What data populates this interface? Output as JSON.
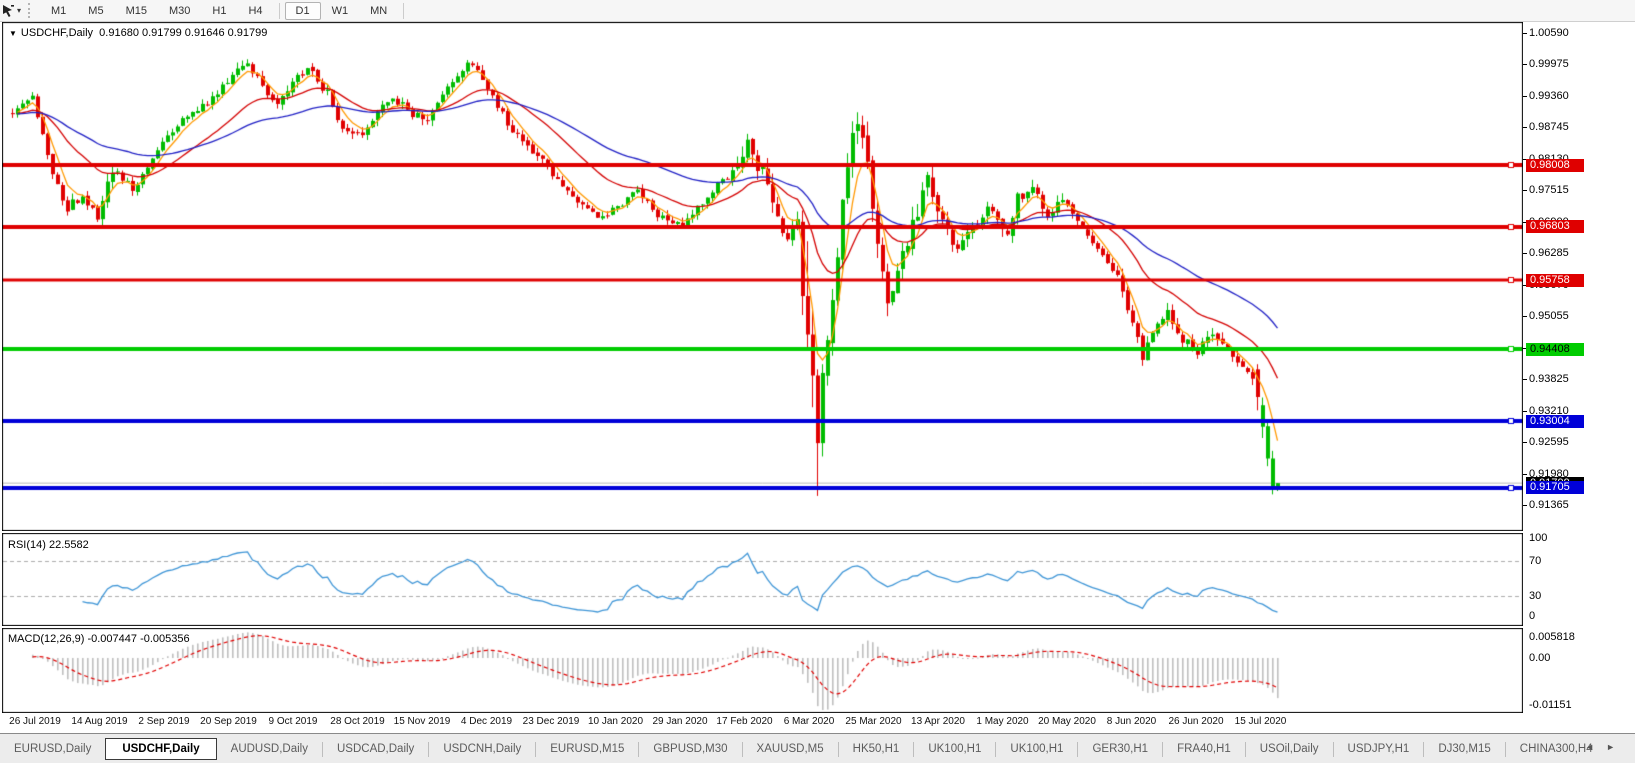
{
  "toolbar": {
    "timeframes": [
      "M1",
      "M5",
      "M15",
      "M30",
      "H1",
      "H4",
      "D1",
      "W1",
      "MN"
    ],
    "active_timeframe": "D1",
    "cursor_tool_icon": "cursor-arrow-icon",
    "dropdown_caret": "▾"
  },
  "chart_header": {
    "collapse_icon": "▼",
    "symbol": "USDCHF,Daily",
    "ohlc": "0.91680 0.91799 0.91646 0.91799"
  },
  "price_axis": {
    "ticks": [
      "1.00590",
      "0.99975",
      "0.99360",
      "0.98745",
      "0.98130",
      "0.97515",
      "0.96900",
      "0.96285",
      "0.95670",
      "0.95055",
      "0.94440",
      "0.93825",
      "0.93210",
      "0.92595",
      "0.91980",
      "0.91365"
    ],
    "line_labels": [
      {
        "text": "0.98008",
        "price": 0.98008,
        "bg": "#DF0000",
        "fg": "#FFFFFF"
      },
      {
        "text": "0.96803",
        "price": 0.96803,
        "bg": "#DF0000",
        "fg": "#FFFFFF"
      },
      {
        "text": "0.95758",
        "price": 0.95758,
        "bg": "#DF0000",
        "fg": "#FFFFFF"
      },
      {
        "text": "0.94408",
        "price": 0.94408,
        "bg": "#00CC00",
        "fg": "#000000"
      },
      {
        "text": "0.93004",
        "price": 0.93004,
        "bg": "#0000D8",
        "fg": "#FFFFFF"
      },
      {
        "text": "0.91799",
        "price": 0.91799,
        "bg": "#000000",
        "fg": "#FFFFFF"
      },
      {
        "text": "0.91705",
        "price": 0.91705,
        "bg": "#0000D8",
        "fg": "#FFFFFF"
      }
    ]
  },
  "chart_data": {
    "type": "candlestick",
    "symbol": "USDCHF",
    "timeframe": "Daily",
    "price_range": {
      "min": 0.91365,
      "max": 1.0059,
      "tick_step": 0.00615
    },
    "bar_count": 254,
    "last_bar": {
      "open": 0.9168,
      "high": 0.91799,
      "low": 0.91646,
      "close": 0.91799
    },
    "up_color": "#00BB00",
    "down_color": "#E00000",
    "close_anchors": [
      [
        0,
        0.9905
      ],
      [
        4,
        0.9935
      ],
      [
        8,
        0.979
      ],
      [
        11,
        0.9715
      ],
      [
        14,
        0.9745
      ],
      [
        17,
        0.97
      ],
      [
        20,
        0.979
      ],
      [
        24,
        0.9755
      ],
      [
        28,
        0.981
      ],
      [
        31,
        0.986
      ],
      [
        35,
        0.9895
      ],
      [
        40,
        0.993
      ],
      [
        44,
        0.998
      ],
      [
        47,
        1.0
      ],
      [
        50,
        0.995
      ],
      [
        53,
        0.9915
      ],
      [
        56,
        0.996
      ],
      [
        59,
        0.999
      ],
      [
        63,
        0.994
      ],
      [
        66,
        0.9875
      ],
      [
        70,
        0.9865
      ],
      [
        73,
        0.9905
      ],
      [
        76,
        0.9935
      ],
      [
        80,
        0.99
      ],
      [
        83,
        0.989
      ],
      [
        86,
        0.9935
      ],
      [
        89,
        0.998
      ],
      [
        92,
        1.0
      ],
      [
        96,
        0.993
      ],
      [
        100,
        0.987
      ],
      [
        104,
        0.983
      ],
      [
        109,
        0.9775
      ],
      [
        113,
        0.9725
      ],
      [
        117,
        0.9695
      ],
      [
        121,
        0.9715
      ],
      [
        125,
        0.9755
      ],
      [
        129,
        0.97
      ],
      [
        134,
        0.968
      ],
      [
        137,
        0.9715
      ],
      [
        140,
        0.975
      ],
      [
        144,
        0.979
      ],
      [
        147,
        0.984
      ],
      [
        150,
        0.9785
      ],
      [
        153,
        0.9695
      ],
      [
        155,
        0.966
      ],
      [
        157,
        0.969
      ],
      [
        163,
        0.948
      ],
      [
        165,
        0.963
      ],
      [
        167,
        0.98
      ],
      [
        169,
        0.9895
      ],
      [
        171,
        0.979
      ],
      [
        173,
        0.964
      ],
      [
        175,
        0.952
      ],
      [
        177,
        0.959
      ],
      [
        180,
        0.969
      ],
      [
        183,
        0.978
      ],
      [
        186,
        0.969
      ],
      [
        189,
        0.963
      ],
      [
        192,
        0.9675
      ],
      [
        195,
        0.9715
      ],
      [
        199,
        0.9675
      ],
      [
        201,
        0.9735
      ],
      [
        204,
        0.9755
      ],
      [
        207,
        0.9695
      ],
      [
        209,
        0.973
      ],
      [
        211,
        0.9715
      ],
      [
        214,
        0.9675
      ],
      [
        217,
        0.9635
      ],
      [
        220,
        0.96
      ],
      [
        222,
        0.956
      ],
      [
        224,
        0.9485
      ],
      [
        226,
        0.943
      ],
      [
        228,
        0.9475
      ],
      [
        231,
        0.951
      ],
      [
        234,
        0.946
      ],
      [
        237,
        0.9435
      ],
      [
        240,
        0.9475
      ],
      [
        243,
        0.9445
      ],
      [
        246,
        0.9415
      ],
      [
        248,
        0.939
      ],
      [
        253,
        0.918
      ]
    ],
    "special_bars": {
      "158": [
        0.969,
        0.9712,
        0.9508,
        0.9545
      ],
      "159": [
        0.9545,
        0.9652,
        0.9438,
        0.947
      ],
      "160": [
        0.947,
        0.9522,
        0.9328,
        0.939
      ],
      "161": [
        0.939,
        0.9402,
        0.9155,
        0.9258
      ],
      "162": [
        0.9258,
        0.9412,
        0.9232,
        0.9395
      ],
      "249": [
        0.9402,
        0.9412,
        0.9322,
        0.9348
      ],
      "250": [
        0.929,
        0.9347,
        0.9268,
        0.9332
      ],
      "251": [
        0.9228,
        0.9302,
        0.9213,
        0.9291
      ],
      "252": [
        0.9168,
        0.9243,
        0.9158,
        0.9228
      ],
      "253": [
        0.9168,
        0.91799,
        0.91646,
        0.91799
      ]
    },
    "volatility_zones": [
      [
        0,
        0.0016
      ],
      [
        8,
        0.0024
      ],
      [
        21,
        0.0015
      ],
      [
        44,
        0.0017
      ],
      [
        96,
        0.0015
      ],
      [
        144,
        0.003
      ],
      [
        163,
        0.0042
      ],
      [
        186,
        0.0022
      ],
      [
        211,
        0.0016
      ],
      [
        222,
        0.002
      ],
      [
        246,
        0.0018
      ]
    ],
    "moving_averages": [
      {
        "name": "fast-ma",
        "period": 5,
        "color": "#FF9900"
      },
      {
        "name": "medium-ma",
        "period": 21,
        "color": "#D40000"
      },
      {
        "name": "slow-ma",
        "period": 50,
        "color": "#2020C5"
      }
    ],
    "horizontal_lines": [
      {
        "price": 0.98008,
        "color": "#DF0000",
        "width": 4
      },
      {
        "price": 0.96803,
        "color": "#DF0000",
        "width": 4
      },
      {
        "price": 0.95758,
        "color": "#DF0000",
        "width": 3
      },
      {
        "price": 0.94408,
        "color": "#00CC00",
        "width": 4
      },
      {
        "price": 0.93004,
        "color": "#0000D8",
        "width": 4
      },
      {
        "price": 0.91705,
        "color": "#0000D8",
        "width": 4
      }
    ],
    "bid_line": {
      "price": 0.91799,
      "color": "#B8B8B8",
      "width": 1
    },
    "indicators": [
      {
        "name": "RSI",
        "params": "14",
        "label": "RSI(14) 22.5582",
        "last_value": 22.5582,
        "levels": [
          70,
          30
        ],
        "axis_labels": [
          "100",
          "70",
          "30",
          "0"
        ],
        "line_color": "#3E95D6"
      },
      {
        "name": "MACD",
        "params": "12,26,9",
        "label": "MACD(12,26,9) -0.007447 -0.005356",
        "macd_value": -0.007447,
        "signal_value": -0.005356,
        "axis_labels": [
          "0.005818",
          "0.00",
          "-0.01151"
        ],
        "histogram_color": "#BEBEBE",
        "signal_color": "#E00000"
      }
    ]
  },
  "date_axis": {
    "labels": [
      "26 Jul 2019",
      "14 Aug 2019",
      "2 Sep 2019",
      "20 Sep 2019",
      "9 Oct 2019",
      "28 Oct 2019",
      "15 Nov 2019",
      "4 Dec 2019",
      "23 Dec 2019",
      "10 Jan 2020",
      "29 Jan 2020",
      "17 Feb 2020",
      "6 Mar 2020",
      "25 Mar 2020",
      "13 Apr 2020",
      "1 May 2020",
      "20 May 2020",
      "8 Jun 2020",
      "26 Jun 2020",
      "15 Jul 2020"
    ]
  },
  "tab_bar": {
    "active": "USDCHF,Daily",
    "scroll_left": "◄",
    "scroll_right": "►",
    "tabs": [
      {
        "label": "EURUSD,Daily"
      },
      {
        "label": "USDCHF,Daily"
      },
      {
        "label": "AUDUSD,Daily"
      },
      {
        "label": "USDCAD,Daily"
      },
      {
        "label": "USDCNH,Daily"
      },
      {
        "label": "EURUSD,M15"
      },
      {
        "label": "GBPUSD,M30"
      },
      {
        "label": "XAUUSD,M5"
      },
      {
        "label": "HK50,H1"
      },
      {
        "label": "UK100,H1"
      },
      {
        "label": "UK100,H1"
      },
      {
        "label": "GER30,H1"
      },
      {
        "label": "FRA40,H1"
      },
      {
        "label": "USOil,Daily"
      },
      {
        "label": "USDJPY,H1"
      },
      {
        "label": "DJ30,M15"
      },
      {
        "label": "CHINA300,H4"
      }
    ]
  }
}
